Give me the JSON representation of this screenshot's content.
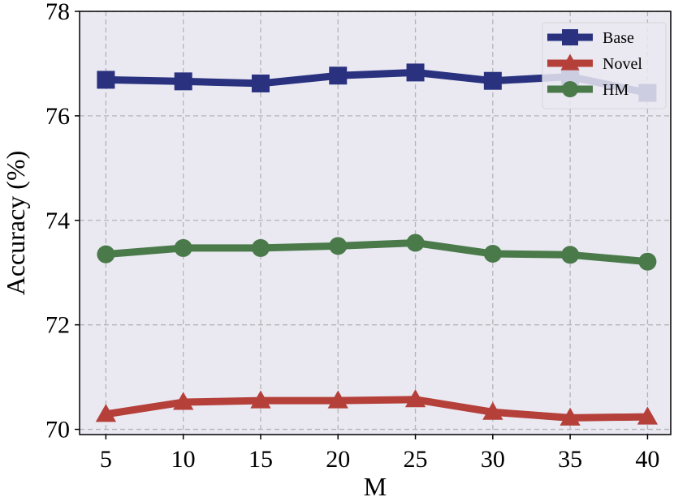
{
  "chart_data": {
    "type": "line",
    "title": "",
    "xlabel": "M",
    "ylabel": "Accuracy (%)",
    "x": [
      5,
      10,
      15,
      20,
      25,
      30,
      35,
      40
    ],
    "x_ticks": [
      "5",
      "10",
      "15",
      "20",
      "25",
      "30",
      "35",
      "40"
    ],
    "y_ticks": [
      "70",
      "72",
      "74",
      "76",
      "78"
    ],
    "xlim": [
      3.3,
      41.5
    ],
    "ylim": [
      69.9,
      78.0
    ],
    "grid": true,
    "legend_position": "top-right",
    "series": [
      {
        "name": "Base",
        "marker": "square",
        "color": "#2a3280",
        "values": [
          76.69,
          76.66,
          76.62,
          76.77,
          76.83,
          76.67,
          76.75,
          76.44
        ]
      },
      {
        "name": "Novel",
        "marker": "triangle",
        "color": "#b5403a",
        "values": [
          70.29,
          70.52,
          70.55,
          70.55,
          70.57,
          70.33,
          70.22,
          70.24
        ]
      },
      {
        "name": "HM",
        "marker": "circle",
        "color": "#4a7a4a",
        "values": [
          73.35,
          73.47,
          73.47,
          73.51,
          73.57,
          73.36,
          73.34,
          73.21
        ]
      }
    ]
  }
}
